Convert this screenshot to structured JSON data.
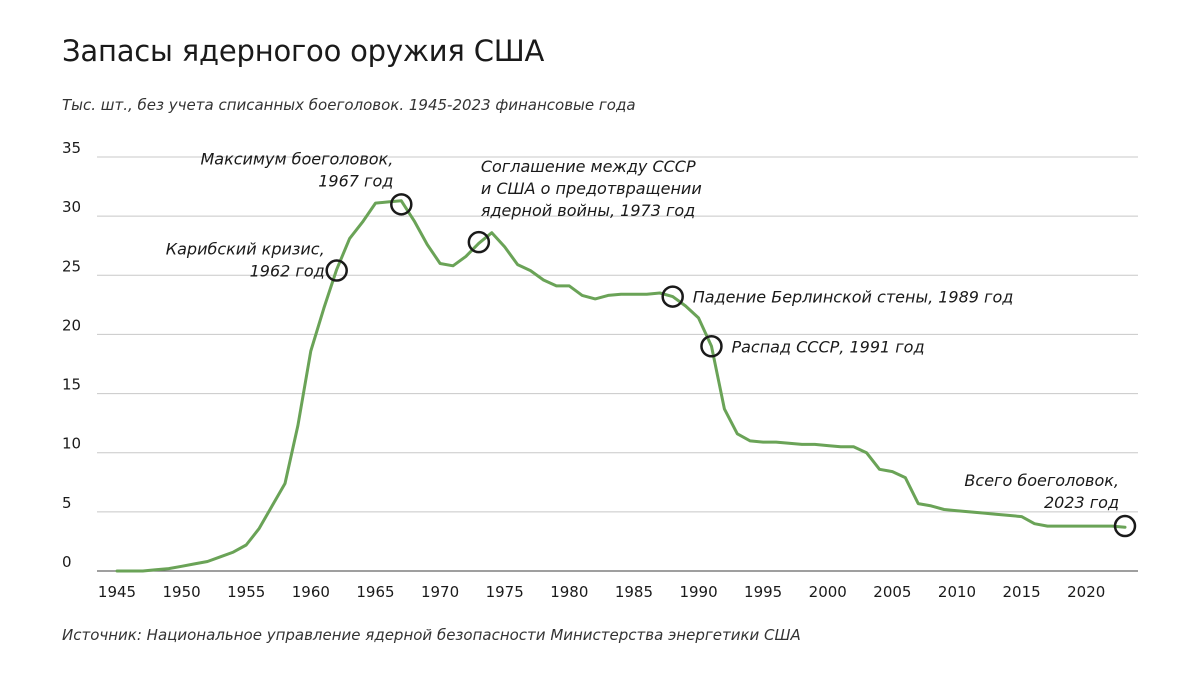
{
  "chart_data": {
    "type": "line",
    "title": "Запасы ядерногоо оружия США",
    "subtitle": "Тыс. шт., без учета списанных боеголовок. 1945-2023 финансовые года",
    "source": "Источник: Национальное управление ядерной безопасности Министерства энергетики США",
    "xlabel": "",
    "ylabel": "",
    "xlim": [
      1945,
      2023
    ],
    "ylim": [
      0,
      35
    ],
    "xticks": [
      "1945",
      "1950",
      "1955",
      "1960",
      "1965",
      "1970",
      "1975",
      "1980",
      "1985",
      "1990",
      "1995",
      "2000",
      "2005",
      "2010",
      "2015",
      "2020"
    ],
    "yticks": [
      "0",
      "5",
      "10",
      "15",
      "20",
      "25",
      "30",
      "35"
    ],
    "grid": true,
    "series": [
      {
        "name": "Запасы ядерного оружия",
        "color": "#6aa357",
        "x": [
          1945,
          1946,
          1947,
          1948,
          1949,
          1950,
          1951,
          1952,
          1953,
          1954,
          1955,
          1956,
          1957,
          1958,
          1959,
          1960,
          1961,
          1962,
          1963,
          1964,
          1965,
          1966,
          1967,
          1968,
          1969,
          1970,
          1971,
          1972,
          1973,
          1974,
          1975,
          1976,
          1977,
          1978,
          1979,
          1980,
          1981,
          1982,
          1983,
          1984,
          1985,
          1986,
          1987,
          1988,
          1989,
          1990,
          1991,
          1992,
          1993,
          1994,
          1995,
          1996,
          1997,
          1998,
          1999,
          2000,
          2001,
          2002,
          2003,
          2004,
          2005,
          2006,
          2007,
          2008,
          2009,
          2010,
          2011,
          2012,
          2013,
          2014,
          2015,
          2016,
          2017,
          2018,
          2019,
          2020,
          2021,
          2022,
          2023
        ],
        "values": [
          0.0,
          0.0,
          0.0,
          0.1,
          0.2,
          0.4,
          0.6,
          0.8,
          1.2,
          1.6,
          2.2,
          3.6,
          5.5,
          7.4,
          12.3,
          18.6,
          22.2,
          25.5,
          28.1,
          29.5,
          31.1,
          31.2,
          31.3,
          29.6,
          27.6,
          26.0,
          25.8,
          26.6,
          27.7,
          28.6,
          27.4,
          25.9,
          25.4,
          24.6,
          24.1,
          24.1,
          23.3,
          23.0,
          23.3,
          23.4,
          23.4,
          23.4,
          23.5,
          23.2,
          22.4,
          21.4,
          19.0,
          13.7,
          11.6,
          11.0,
          10.9,
          10.9,
          10.8,
          10.7,
          10.7,
          10.6,
          10.5,
          10.5,
          10.0,
          8.6,
          8.4,
          7.9,
          5.7,
          5.5,
          5.2,
          5.1,
          5.0,
          4.9,
          4.8,
          4.7,
          4.6,
          4.0,
          3.8,
          3.8,
          3.8,
          3.8,
          3.8,
          3.8,
          3.7
        ]
      }
    ],
    "annotations": [
      {
        "year": 1962,
        "value": 25.4,
        "lines": [
          "Карибский кризис,",
          "1962 год"
        ],
        "align": "end"
      },
      {
        "year": 1967,
        "value": 31.0,
        "lines": [
          "Максимум боеголовок,",
          "1967 год"
        ],
        "align": "end"
      },
      {
        "year": 1973,
        "value": 27.8,
        "lines": [
          "Соглашение между СССР",
          "и США о предотвращении",
          "ядерной войны, 1973 год"
        ],
        "align": "start"
      },
      {
        "year": 1988,
        "value": 23.2,
        "lines": [
          "Падение Берлинской стены, 1989 год"
        ],
        "align": "start"
      },
      {
        "year": 1991,
        "value": 19.0,
        "lines": [
          "Распад СССР, 1991 год"
        ],
        "align": "start"
      },
      {
        "year": 2023,
        "value": 3.8,
        "lines": [
          "Всего боеголовок,",
          "2023 год"
        ],
        "align": "end"
      }
    ]
  }
}
